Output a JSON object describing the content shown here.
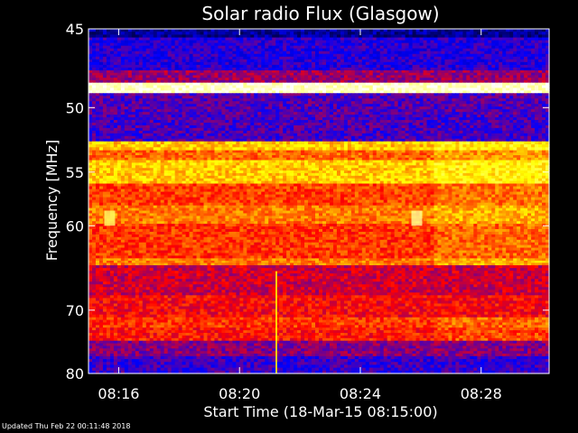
{
  "chart_data": {
    "type": "heatmap",
    "title": "Solar radio Flux (Glasgow)",
    "xlabel": "Start Time (18-Mar-15 08:15:00)",
    "ylabel": "Frequency [MHz]",
    "x_ticks": [
      "08:16",
      "08:20",
      "08:24",
      "08:28"
    ],
    "y_ticks": [
      45,
      50,
      55,
      60,
      70,
      80
    ],
    "ylim": [
      45,
      80
    ],
    "y_scale": "reciprocal",
    "xlim": [
      "08:15:00",
      "08:30:15"
    ],
    "colormap": [
      "#000000",
      "#0000ff",
      "#ff0000",
      "#ffff00",
      "#ffffff"
    ],
    "frequency_bands": [
      {
        "from": 45,
        "to": 45.5,
        "level": 0.15
      },
      {
        "from": 45.5,
        "to": 47.5,
        "level": 0.28
      },
      {
        "from": 47.5,
        "to": 48.3,
        "level": 0.4
      },
      {
        "from": 48.3,
        "to": 49.0,
        "level": 0.95
      },
      {
        "from": 49.0,
        "to": 50.5,
        "level": 0.33
      },
      {
        "from": 50.5,
        "to": 52.5,
        "level": 0.32
      },
      {
        "from": 52.5,
        "to": 53.2,
        "level": 0.7
      },
      {
        "from": 53.2,
        "to": 54.0,
        "level": 0.6
      },
      {
        "from": 54.0,
        "to": 56.0,
        "level": 0.7
      },
      {
        "from": 56.0,
        "to": 58.0,
        "level": 0.56
      },
      {
        "from": 58.0,
        "to": 59.8,
        "level": 0.62
      },
      {
        "from": 59.8,
        "to": 63.5,
        "level": 0.55
      },
      {
        "from": 63.5,
        "to": 64.3,
        "level": 0.62
      },
      {
        "from": 64.3,
        "to": 68.0,
        "level": 0.45
      },
      {
        "from": 68.0,
        "to": 71.0,
        "level": 0.5
      },
      {
        "from": 71.0,
        "to": 72.5,
        "level": 0.55
      },
      {
        "from": 72.5,
        "to": 74.5,
        "level": 0.52
      },
      {
        "from": 74.5,
        "to": 77.0,
        "level": 0.38
      },
      {
        "from": 77.0,
        "to": 80.0,
        "level": 0.3
      }
    ],
    "events": [
      {
        "time": "08:25:45",
        "freq_from": 58.5,
        "freq_to": 60.0,
        "level": 0.9
      },
      {
        "time": "08:15:35",
        "freq_from": 58.5,
        "freq_to": 60.0,
        "level": 0.85
      },
      {
        "time": "08:21:15",
        "freq_from": 65.0,
        "freq_to": 80.0,
        "level": 0.75
      }
    ]
  },
  "footer": {
    "updated_text": "Updated Thu Feb 22 00:11:48 2018"
  }
}
